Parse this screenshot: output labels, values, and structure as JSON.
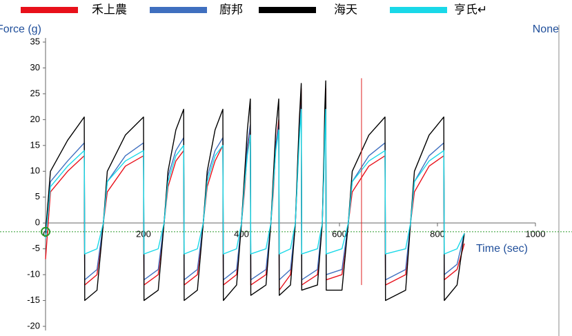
{
  "chart_data": {
    "type": "line",
    "y_label": "Force (g)",
    "x_label": "Time (sec)",
    "y2_label": "None",
    "xlim": [
      0,
      1000
    ],
    "xticks": [
      0,
      200,
      400,
      600,
      800,
      1000
    ],
    "ylim": [
      -20,
      35
    ],
    "yticks": [
      -20,
      -15,
      -10,
      -5,
      0,
      5,
      10,
      15,
      20,
      25,
      30,
      35
    ],
    "x": [
      0,
      10,
      45,
      79,
      80,
      105,
      118,
      126,
      163,
      200,
      201,
      230,
      242,
      250,
      266,
      282,
      283,
      310,
      322,
      330,
      346,
      362,
      363,
      390,
      400,
      406,
      412,
      418,
      419,
      450,
      460,
      465,
      470,
      476,
      477,
      500,
      510,
      514,
      518,
      522,
      523,
      555,
      565,
      568,
      570,
      572,
      573,
      605,
      618,
      626,
      660,
      693,
      694,
      735,
      745,
      753,
      783,
      813,
      814,
      840,
      855
    ],
    "series": [
      {
        "name": "禾上農",
        "color": "#e8101a",
        "values": [
          -7,
          6,
          10,
          13,
          -12,
          -10,
          0,
          6,
          11,
          13,
          -12,
          -10,
          0,
          7,
          12,
          14,
          -12,
          -10,
          0,
          7,
          12,
          15,
          -12,
          -10,
          0,
          6,
          14,
          19,
          -12,
          -10,
          0,
          6,
          15,
          20,
          -13,
          -10,
          0,
          8,
          18,
          26,
          -12,
          -10,
          0,
          10,
          20,
          26,
          -11,
          -10,
          0,
          6,
          11,
          13,
          -12,
          -10,
          0,
          6,
          11,
          13,
          -11,
          -9,
          -4
        ]
      },
      {
        "name": "廚邦",
        "color": "#3f6fbf",
        "values": [
          -2,
          8,
          12,
          15.5,
          -11,
          -9,
          0,
          8,
          13,
          15.5,
          -11,
          -9,
          0,
          9,
          14,
          16.5,
          -11,
          -9,
          0,
          9,
          14,
          16.5,
          -11,
          -9,
          0,
          8,
          15,
          19,
          -11,
          -9,
          0,
          8,
          15,
          19,
          -11,
          -9,
          0,
          9,
          17,
          23,
          -11,
          -9,
          0,
          10,
          18,
          23,
          -10,
          -9,
          0,
          8,
          13,
          15.5,
          -11,
          -9,
          0,
          8,
          13,
          15.5,
          -10,
          -8,
          -2
        ]
      },
      {
        "name": "海天",
        "color": "#000000",
        "values": [
          -2,
          10,
          16,
          20.5,
          -15,
          -13,
          0,
          10,
          17,
          20.5,
          -15,
          -13,
          0,
          10,
          18,
          22,
          -15,
          -13,
          0,
          10,
          18,
          22,
          -15,
          -12,
          0,
          9,
          18,
          24,
          -14,
          -12,
          0,
          9,
          18,
          24,
          -14,
          -12,
          0,
          10,
          20,
          27,
          -13,
          -12,
          0,
          12,
          22,
          27.5,
          -13,
          -13,
          0,
          10,
          17,
          20.5,
          -15,
          -13,
          0,
          10,
          17,
          20.5,
          -15,
          -12,
          -2
        ]
      },
      {
        "name": "亨氏↵",
        "color": "#19d8e8",
        "values": [
          -3,
          7,
          11,
          14,
          -6,
          -5,
          0,
          8,
          12,
          14,
          -6,
          -5,
          0,
          8,
          13,
          15,
          -6,
          -5,
          0,
          8,
          13,
          15,
          -6,
          -5,
          0,
          7,
          13,
          17,
          -6,
          -5,
          0,
          7,
          14,
          18,
          -6,
          -5,
          0,
          8,
          16,
          22,
          -6,
          -5,
          0,
          9,
          17,
          22,
          -6,
          -5,
          0,
          8,
          12,
          14,
          -6,
          -5,
          0,
          8,
          12,
          14,
          -6,
          -5,
          -2
        ]
      }
    ],
    "marker": {
      "x": 645,
      "y": [
        -12,
        28
      ],
      "color": "#e02020"
    },
    "reference_line": {
      "y": -1.7,
      "color": "#2a9a2a"
    }
  }
}
